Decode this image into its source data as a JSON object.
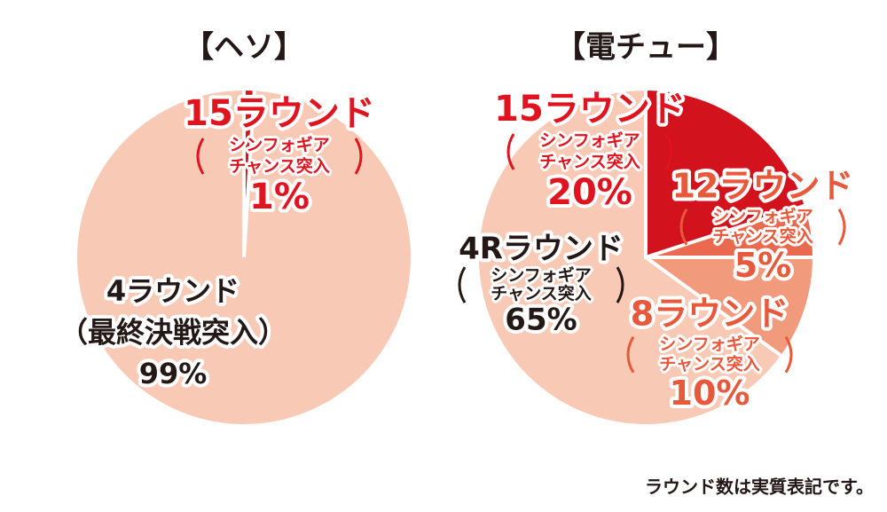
{
  "chart_data": [
    {
      "type": "pie",
      "title": "【ヘソ】",
      "categories": [
        "15ラウンド",
        "4ラウンド"
      ],
      "notes": [
        [
          "シンフォギア",
          "チャンス突入"
        ],
        [
          "（最終決戦突入）"
        ]
      ],
      "values": [
        1,
        99
      ],
      "value_labels": [
        "1%",
        "99%"
      ],
      "colors": [
        "#d7141e",
        "#f8cab6"
      ],
      "label_colors": [
        "#e0141e",
        "#231815"
      ]
    },
    {
      "type": "pie",
      "title": "【電チュー】",
      "categories": [
        "15ラウンド",
        "12ラウンド",
        "8ラウンド",
        "4Rラウンド"
      ],
      "notes": [
        [
          "シンフォギア",
          "チャンス突入"
        ],
        [
          "シンフォギア",
          "チャンス突入"
        ],
        [
          "シンフォギア",
          "チャンス突入"
        ],
        [
          "シンフォギア",
          "チャンス突入"
        ]
      ],
      "values": [
        20,
        5,
        10,
        65
      ],
      "value_labels": [
        "20%",
        "5%",
        "10%",
        "65%"
      ],
      "colors": [
        "#d2121c",
        "#ea6a50",
        "#f19a7c",
        "#f8cab6"
      ],
      "label_colors": [
        "#e0141e",
        "#e8583a",
        "#e8583a",
        "#231815"
      ]
    }
  ],
  "footnote": "ラウンド数は実質表記です。"
}
